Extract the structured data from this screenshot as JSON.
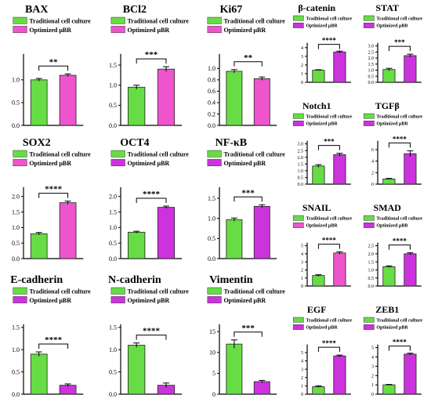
{
  "colors": {
    "green": "#66dd44",
    "pink": "#ee55cc",
    "purple": "#cc33dd",
    "axis": "#000000"
  },
  "chart_data": [
    {
      "title": "BAX",
      "type": "bar",
      "legend": [
        "Traditional cell culture",
        "Optimized µBR"
      ],
      "values": [
        1.0,
        1.1
      ],
      "errors": [
        0.03,
        0.03
      ],
      "ylim": [
        0,
        1.5
      ],
      "ticks": [
        "0.0",
        "0.5",
        "1.0"
      ],
      "sig": "**"
    },
    {
      "title": "BCl2",
      "type": "bar",
      "legend": [
        "Traditional cell culture",
        "Optimized µBR"
      ],
      "values": [
        0.95,
        1.4
      ],
      "errors": [
        0.05,
        0.06
      ],
      "ylim": [
        0,
        1.7
      ],
      "ticks": [
        "0.0",
        "0.5",
        "1.0",
        "1.5"
      ],
      "sig": "***"
    },
    {
      "title": "Ki67",
      "type": "bar",
      "legend": [
        "Traditional cell culture",
        "Optimized µBR"
      ],
      "values": [
        0.95,
        0.82
      ],
      "errors": [
        0.03,
        0.03
      ],
      "ylim": [
        0,
        1.2
      ],
      "ticks": [
        "0.0",
        "0.2",
        "0.4",
        "0.6",
        "0.8",
        "1.0"
      ],
      "sig": "**"
    },
    {
      "title": "β-catenin",
      "type": "bar",
      "legend": [
        "Traditional cell culture",
        "Optimized µBR"
      ],
      "values": [
        1.4,
        3.5
      ],
      "errors": [
        0.05,
        0.1
      ],
      "ylim": [
        0,
        4.2
      ],
      "ticks": [
        "0",
        "1",
        "2",
        "3",
        "4"
      ],
      "sig": "****"
    },
    {
      "title": "STAT",
      "type": "bar",
      "legend": [
        "Traditional cell culture",
        "Optimized µBR"
      ],
      "values": [
        1.05,
        2.2
      ],
      "errors": [
        0.1,
        0.12
      ],
      "ylim": [
        0,
        3.0
      ],
      "ticks": [
        "0.0",
        "0.5",
        "1.0",
        "1.5",
        "2.0",
        "2.5",
        "3.0"
      ],
      "sig": "***"
    },
    {
      "title": "SOX2",
      "type": "bar",
      "legend": [
        "Traditional cell culture",
        "Optimized µBR"
      ],
      "values": [
        0.8,
        1.8
      ],
      "errors": [
        0.04,
        0.05
      ],
      "ylim": [
        0,
        2.2
      ],
      "ticks": [
        "0.0",
        "0.5",
        "1.0",
        "1.5",
        "2.0"
      ],
      "sig": "****"
    },
    {
      "title": "OCT4",
      "type": "bar",
      "legend": [
        "Traditional cell culture",
        "Optimized µBR"
      ],
      "values": [
        0.85,
        1.65
      ],
      "errors": [
        0.03,
        0.04
      ],
      "ylim": [
        0,
        2.2
      ],
      "ticks": [
        "0.0",
        "0.5",
        "1.0",
        "1.5",
        "2.0"
      ],
      "sig": "****"
    },
    {
      "title": "NF-κB",
      "type": "bar",
      "legend": [
        "Traditional cell culture",
        "Optimized µBR"
      ],
      "values": [
        0.97,
        1.3
      ],
      "errors": [
        0.04,
        0.04
      ],
      "ylim": [
        0,
        1.7
      ],
      "ticks": [
        "0.0",
        "0.5",
        "1.0",
        "1.5"
      ],
      "sig": "***"
    },
    {
      "title": "Notch1",
      "type": "bar",
      "legend": [
        "Traditional cell culture",
        "Optimized µBR"
      ],
      "values": [
        1.35,
        2.2
      ],
      "errors": [
        0.1,
        0.1
      ],
      "ylim": [
        0,
        3.0
      ],
      "ticks": [
        "0.0",
        "0.5",
        "1.0",
        "1.5",
        "2.0",
        "2.5",
        "3.0"
      ],
      "sig": "***"
    },
    {
      "title": "TGFβ",
      "type": "bar",
      "legend": [
        "Traditional cell culture",
        "Optimized µBR"
      ],
      "values": [
        0.9,
        5.3
      ],
      "errors": [
        0.1,
        0.5
      ],
      "ylim": [
        0,
        7
      ],
      "ticks": [
        "0",
        "2",
        "4",
        "6"
      ],
      "sig": "****"
    },
    {
      "title": "SNAIL",
      "type": "bar",
      "legend": [
        "Traditional cell culture",
        "Optimized µBR"
      ],
      "values": [
        1.3,
        4.1
      ],
      "errors": [
        0.1,
        0.15
      ],
      "ylim": [
        0,
        5
      ],
      "ticks": [
        "0",
        "1",
        "2",
        "3",
        "4",
        "5"
      ],
      "sig": "****"
    },
    {
      "title": "SMAD",
      "type": "bar",
      "legend": [
        "Traditional cell culture",
        "Optimized µBR"
      ],
      "values": [
        1.2,
        2.0
      ],
      "errors": [
        0.05,
        0.06
      ],
      "ylim": [
        0,
        2.5
      ],
      "ticks": [
        "0.0",
        "0.5",
        "1.0",
        "1.5",
        "2.0",
        "2.5"
      ],
      "sig": "****"
    },
    {
      "title": "E-cadherin",
      "type": "bar",
      "legend": [
        "Traditional cell culture",
        "Optimized µBR"
      ],
      "values": [
        0.9,
        0.2
      ],
      "errors": [
        0.05,
        0.03
      ],
      "ylim": [
        0,
        1.5
      ],
      "ticks": [
        "0.0",
        "0.5",
        "1.0",
        "1.5"
      ],
      "sig": "****"
    },
    {
      "title": "N-cadherin",
      "type": "bar",
      "legend": [
        "Traditional cell culture",
        "Optimized µBR"
      ],
      "values": [
        1.1,
        0.2
      ],
      "errors": [
        0.05,
        0.05
      ],
      "ylim": [
        0,
        1.5
      ],
      "ticks": [
        "0.0",
        "0.5",
        "1.0",
        "1.5"
      ],
      "sig": "****"
    },
    {
      "title": "Vimentin",
      "type": "bar",
      "legend": [
        "Traditional cell culture",
        "Optimized µBR"
      ],
      "values": [
        12,
        3
      ],
      "errors": [
        1.0,
        0.3
      ],
      "ylim": [
        0,
        16
      ],
      "ticks": [
        "0",
        "5",
        "10",
        "15"
      ],
      "sig": "***"
    },
    {
      "title": "EGF",
      "type": "bar",
      "legend": [
        "Traditional cell culture",
        "Optimized µBR"
      ],
      "values": [
        0.9,
        4.6
      ],
      "errors": [
        0.1,
        0.1
      ],
      "ylim": [
        0,
        5.6
      ],
      "ticks": [
        "0",
        "1",
        "2",
        "3",
        "4",
        "5"
      ],
      "sig": "****"
    },
    {
      "title": "ZEB1",
      "type": "bar",
      "legend": [
        "Traditional cell culture",
        "Optimized µBR"
      ],
      "values": [
        1.0,
        4.3
      ],
      "errors": [
        0.05,
        0.1
      ],
      "ylim": [
        0,
        5
      ],
      "ticks": [
        "0",
        "1",
        "2",
        "3",
        "4",
        "5"
      ],
      "sig": "****"
    }
  ]
}
